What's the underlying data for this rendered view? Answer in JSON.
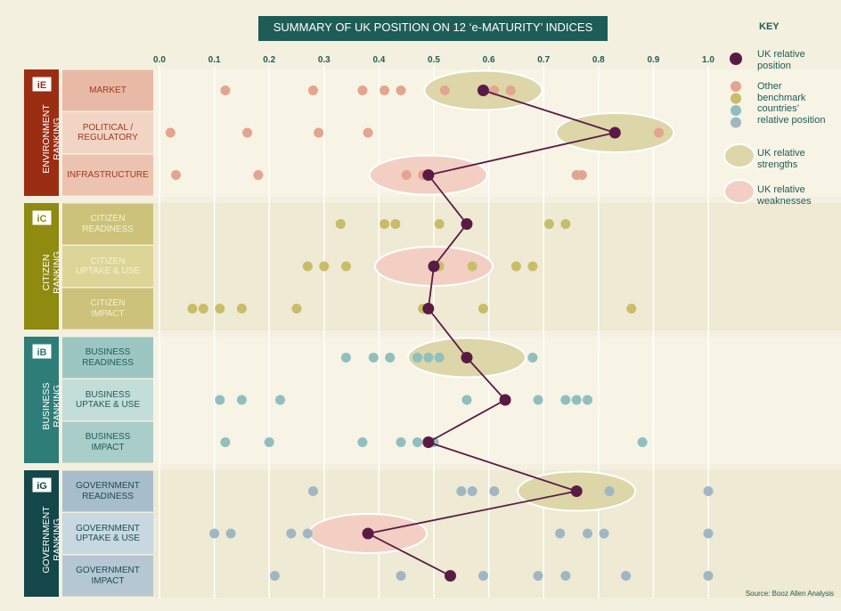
{
  "chart_data": {
    "type": "dot",
    "title": "SUMMARY OF UK POSITION ON 12 ‘e-MATURITY’ INDICES",
    "source": "Source: Booz Allen Analysis",
    "xlim": [
      0,
      1
    ],
    "xticks": [
      {
        "value": 0,
        "label": "0.0"
      },
      0.1,
      0.2,
      0.3,
      0.4,
      0.5,
      0.6,
      0.7,
      0.8,
      0.9,
      {
        "value": 1,
        "label": "1.0"
      }
    ],
    "grid": true,
    "uk_color": "#5b1a45",
    "strength_color": "#ddd6a8",
    "weakness_color": "#f3cfc3",
    "key": {
      "title": "KEY",
      "uk": "UK relative\nposition",
      "others": "Other\nbenchmark\ncountries’\nrelative position",
      "strength": "UK relative\nstrengths",
      "weakness": "UK relative\nweaknesses"
    },
    "groups": [
      {
        "name": "ENVIRONMENT\nRANKING",
        "code": "iE",
        "color": "#9b2d13",
        "text_color": "#a03a1e",
        "dot_color": "#e2a58f",
        "rows": [
          {
            "label": "MARKET",
            "color": "#e8b9a5",
            "uk": 0.59,
            "others": [
              0.12,
              0.28,
              0.37,
              0.41,
              0.44,
              0.52,
              0.61,
              0.64
            ],
            "highlight": "strength"
          },
          {
            "label": "POLITICAL /\nREGULATORY",
            "color": "#f2d4c5",
            "uk": 0.83,
            "others": [
              0.02,
              0.16,
              0.29,
              0.38,
              0.91
            ],
            "highlight": "strength"
          },
          {
            "label": "INFRASTRUCTURE",
            "color": "#ecc3b1",
            "uk": 0.49,
            "others": [
              0.03,
              0.18,
              0.45,
              0.48,
              0.76,
              0.77
            ],
            "highlight": "weakness"
          }
        ]
      },
      {
        "name": "CITIZEN\nRANKING",
        "code": "iC",
        "color": "#8f8a10",
        "text_color": "#f6f1d0",
        "dot_color": "#c9bd6a",
        "rows": [
          {
            "label": "CITIZEN\nREADINESS",
            "color": "#ccc27a",
            "uk": 0.56,
            "others": [
              0.33,
              0.41,
              0.43,
              0.51,
              0.71,
              0.74
            ],
            "highlight": null
          },
          {
            "label": "CITIZEN\nUPTAKE & USE",
            "color": "#ddd598",
            "uk": 0.5,
            "others": [
              0.27,
              0.3,
              0.34,
              0.51,
              0.57,
              0.65,
              0.68
            ],
            "highlight": "weakness"
          },
          {
            "label": "CITIZEN\nIMPACT",
            "color": "#ccc27a",
            "uk": 0.49,
            "others": [
              0.06,
              0.08,
              0.11,
              0.15,
              0.25,
              0.48,
              0.59,
              0.86
            ],
            "highlight": null
          }
        ]
      },
      {
        "name": "BUSINESS\nRANKING",
        "code": "iB",
        "color": "#2f7d78",
        "text_color": "#1e5c57",
        "dot_color": "#8fbfc0",
        "rows": [
          {
            "label": "BUSINESS\nREADINESS",
            "color": "#9cc6c2",
            "uk": 0.56,
            "others": [
              0.34,
              0.39,
              0.42,
              0.47,
              0.49,
              0.51,
              0.68
            ],
            "highlight": "strength"
          },
          {
            "label": "BUSINESS\nUPTAKE & USE",
            "color": "#c3ddd9",
            "uk": 0.63,
            "others": [
              0.11,
              0.15,
              0.22,
              0.56,
              0.69,
              0.74,
              0.76,
              0.78
            ],
            "highlight": null
          },
          {
            "label": "BUSINESS\nIMPACT",
            "color": "#a9cdc9",
            "uk": 0.49,
            "others": [
              0.12,
              0.2,
              0.37,
              0.44,
              0.47,
              0.5,
              0.88
            ],
            "highlight": null
          }
        ]
      },
      {
        "name": "GOVERNMENT\nRANKING",
        "code": "iG",
        "color": "#14474a",
        "text_color": "#1e4a55",
        "dot_color": "#9fb7c4",
        "rows": [
          {
            "label": "GOVERNMENT\nREADINESS",
            "color": "#a7bdcb",
            "uk": 0.76,
            "others": [
              0.28,
              0.55,
              0.57,
              0.61,
              0.82,
              1.0
            ],
            "highlight": "strength"
          },
          {
            "label": "GOVERNMENT\nUPTAKE & USE",
            "color": "#c8d8e1",
            "uk": 0.38,
            "others": [
              0.1,
              0.13,
              0.24,
              0.27,
              0.73,
              0.78,
              0.81,
              1.0
            ],
            "highlight": "weakness"
          },
          {
            "label": "GOVERNMENT\nIMPACT",
            "color": "#b4c7d3",
            "uk": 0.53,
            "others": [
              0.21,
              0.44,
              0.59,
              0.69,
              0.74,
              0.85,
              1.0
            ],
            "highlight": null
          }
        ]
      }
    ]
  }
}
